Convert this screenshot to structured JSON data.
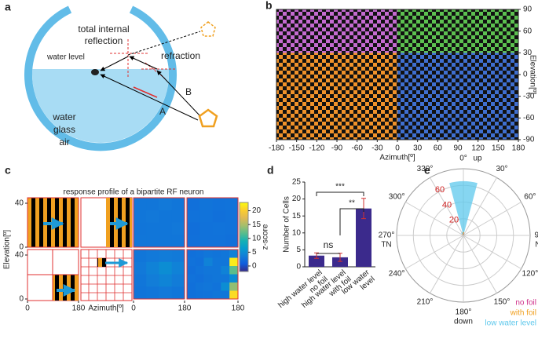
{
  "panel_labels": [
    "a",
    "b",
    "c",
    "d",
    "e"
  ],
  "diagram_a": {
    "reflection_label": [
      "total internal",
      "reflection"
    ],
    "water_level": "water level",
    "refraction": "refraction",
    "ray_b": "B",
    "ray_a": "A",
    "media": [
      "water",
      "glass",
      "air"
    ]
  },
  "chart_data": [
    {
      "type": "image",
      "xlabel": "Azimuth[º]",
      "ylabel": "Elevation[º]",
      "xlim": [
        -180,
        180
      ],
      "ylim": [
        -90,
        90
      ],
      "xticks": [
        -180,
        -150,
        -120,
        -90,
        -60,
        -30,
        0,
        30,
        60,
        90,
        120,
        150,
        180
      ],
      "yticks": [
        -90,
        -60,
        -30,
        0,
        30,
        60,
        90
      ],
      "regions": [
        {
          "xlim": [
            -180,
            0
          ],
          "ylim": [
            30,
            90
          ],
          "color": "#c46ad0"
        },
        {
          "xlim": [
            0,
            180
          ],
          "ylim": [
            30,
            90
          ],
          "color": "#5cc050"
        },
        {
          "xlim": [
            -180,
            0
          ],
          "ylim": [
            -90,
            30
          ],
          "color": "#f0922a"
        },
        {
          "xlim": [
            0,
            180
          ],
          "ylim": [
            -90,
            30
          ],
          "color": "#3f6fd0"
        }
      ]
    },
    {
      "type": "heatmap",
      "title": "response profile of a bipartite RF neuron",
      "xlabel": "Azimuth[º]",
      "ylabel": "Elevation[º]",
      "xlim": [
        0,
        180
      ],
      "xticks": [
        0,
        180
      ],
      "ylim": [
        0,
        45
      ],
      "yticks": [
        0,
        40
      ],
      "colorbar": {
        "label": "z-score",
        "lim": [
          -2,
          23
        ],
        "ticks": [
          0,
          5,
          10,
          15,
          20
        ]
      },
      "heatmaps": [
        {
          "values": [
            [
              3,
              3,
              3.2,
              3
            ],
            [
              3,
              3.1,
              3,
              3
            ],
            [
              2.9,
              3,
              3,
              3.1
            ],
            [
              3,
              3,
              3,
              3
            ]
          ]
        },
        {
          "values": [
            [
              2.5,
              2.8,
              2.6,
              2.7
            ],
            [
              2.6,
              2.7,
              2.5,
              2.6
            ],
            [
              2.4,
              2.6,
              2.7,
              2.6
            ],
            [
              2.5,
              2.6,
              2.6,
              2.5
            ]
          ]
        },
        {
          "values": [
            [
              3,
              3.2,
              3.5,
              3.3
            ],
            [
              3.2,
              4,
              5,
              4
            ],
            [
              3,
              3.6,
              4.2,
              3.5
            ],
            [
              2.8,
              3,
              3.2,
              3
            ]
          ]
        },
        {
          "values": [
            [
              2.5,
              2.6,
              3,
              2.8,
              3,
              4
            ],
            [
              2.6,
              2.5,
              4,
              3,
              3,
              22
            ],
            [
              2.4,
              2.7,
              3,
              3,
              4,
              12
            ],
            [
              2.6,
              2.5,
              2.8,
              3,
              3,
              5
            ],
            [
              2.5,
              2.8,
              3,
              2.7,
              5,
              14
            ],
            [
              2.5,
              2.6,
              2.7,
              3,
              3,
              21
            ]
          ]
        }
      ]
    },
    {
      "type": "bar",
      "ylabel": "Number of Cells",
      "categories": [
        [
          "high water level",
          "no foil"
        ],
        [
          "high water level",
          "with foil"
        ],
        [
          "low water",
          "level"
        ]
      ],
      "values": [
        3.3,
        2.8,
        17.2
      ],
      "errors": [
        0.8,
        1.2,
        3.0
      ],
      "color": "#3b2a8c",
      "error_color": "#d03030",
      "ylim": [
        0,
        25
      ],
      "yticks": [
        0,
        5,
        10,
        15,
        20,
        25
      ],
      "significance": [
        "ns",
        "***",
        "**"
      ]
    },
    {
      "type": "polar",
      "rlim": [
        0,
        80
      ],
      "rticks": [
        20,
        40,
        60
      ],
      "rtick_color": "#d02020",
      "thetaticks": [
        {
          "value": 0,
          "label": "0°"
        },
        {
          "value": 30,
          "label": "30°"
        },
        {
          "value": 60,
          "label": "60°"
        },
        {
          "value": 90,
          "label": "90°"
        },
        {
          "value": 120,
          "label": "120°"
        },
        {
          "value": 150,
          "label": "150°"
        },
        {
          "value": 180,
          "label": "180°"
        },
        {
          "value": 210,
          "label": "210°"
        },
        {
          "value": 240,
          "label": "240°"
        },
        {
          "value": 270,
          "label": "270°"
        },
        {
          "value": 300,
          "label": "300°"
        },
        {
          "value": 330,
          "label": "330°"
        }
      ],
      "direction_labels": [
        {
          "value": 0,
          "label": "up"
        },
        {
          "value": 90,
          "label": "NT"
        },
        {
          "value": 180,
          "label": "down"
        },
        {
          "value": 270,
          "label": "TN"
        }
      ],
      "theta": [
        0,
        30,
        60,
        90,
        120,
        150,
        180,
        210,
        240,
        270,
        300,
        330
      ],
      "series": [
        {
          "name": "low water level",
          "color": "#5ec8ec",
          "values": [
            65,
            2,
            0,
            0,
            0,
            0,
            0,
            0,
            0,
            0,
            0,
            4
          ]
        },
        {
          "name": "no foil",
          "color": "#d0308a",
          "values": [
            3,
            1,
            0,
            0,
            0,
            0,
            0,
            0,
            0,
            0,
            0,
            1
          ]
        },
        {
          "name": "with foil",
          "color": "#f0a020",
          "values": [
            4,
            1,
            0,
            0,
            0,
            0,
            0,
            0,
            0,
            0,
            0,
            2
          ]
        }
      ]
    }
  ]
}
